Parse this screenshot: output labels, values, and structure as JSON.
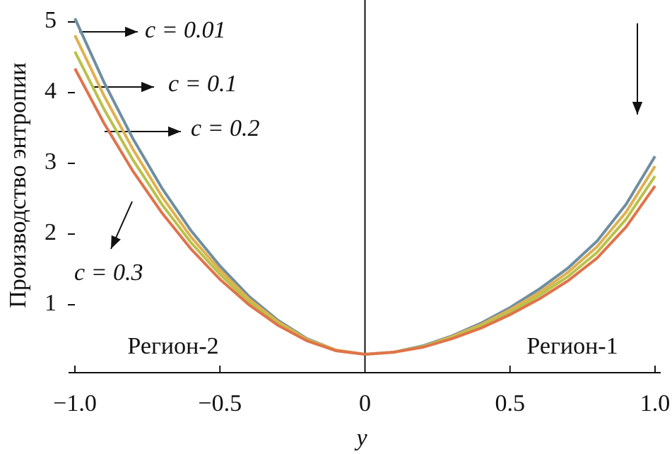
{
  "chart_data": {
    "type": "line",
    "xlabel": "y",
    "ylabel": "Производство энтропии",
    "x": [
      -1.0,
      -0.9,
      -0.8,
      -0.7,
      -0.6,
      -0.5,
      -0.4,
      -0.3,
      -0.2,
      -0.1,
      0,
      0.1,
      0.2,
      0.3,
      0.4,
      0.5,
      0.6,
      0.7,
      0.8,
      0.9,
      1.0
    ],
    "series": [
      {
        "name": "c = 0.01",
        "color": "#6f8ea0",
        "values": [
          5.05,
          4.15,
          3.35,
          2.65,
          2.05,
          1.55,
          1.12,
          0.78,
          0.52,
          0.36,
          0.3,
          0.33,
          0.42,
          0.56,
          0.74,
          0.96,
          1.22,
          1.52,
          1.9,
          2.42,
          3.1
        ]
      },
      {
        "name": "c = 0.1",
        "color": "#e0b050",
        "values": [
          4.81,
          3.96,
          3.2,
          2.53,
          1.96,
          1.49,
          1.08,
          0.76,
          0.51,
          0.36,
          0.3,
          0.33,
          0.41,
          0.55,
          0.72,
          0.93,
          1.17,
          1.46,
          1.82,
          2.31,
          2.96
        ]
      },
      {
        "name": "c = 0.2",
        "color": "#b9c24a",
        "values": [
          4.58,
          3.77,
          3.05,
          2.42,
          1.88,
          1.43,
          1.04,
          0.73,
          0.5,
          0.35,
          0.3,
          0.33,
          0.41,
          0.53,
          0.7,
          0.89,
          1.13,
          1.4,
          1.74,
          2.21,
          2.82
        ]
      },
      {
        "name": "c = 0.3",
        "color": "#e0734a",
        "values": [
          4.34,
          3.57,
          2.89,
          2.3,
          1.79,
          1.36,
          1.0,
          0.71,
          0.49,
          0.35,
          0.3,
          0.33,
          0.4,
          0.52,
          0.67,
          0.86,
          1.08,
          1.34,
          1.66,
          2.1,
          2.68
        ]
      }
    ],
    "annotations": [
      "Регион-2",
      "Регион-1"
    ],
    "xlim": [
      -1.0,
      1.0
    ],
    "ylim": [
      0.04,
      5.3
    ],
    "xticks": [
      {
        "value": -1.0,
        "label": "−1.0"
      },
      {
        "value": -0.5,
        "label": "−0.5"
      },
      0,
      {
        "value": 0.5,
        "label": "0.5"
      },
      {
        "value": 1.0,
        "label": "1.0"
      }
    ],
    "yticks": [
      1,
      2,
      3,
      4,
      5
    ]
  }
}
